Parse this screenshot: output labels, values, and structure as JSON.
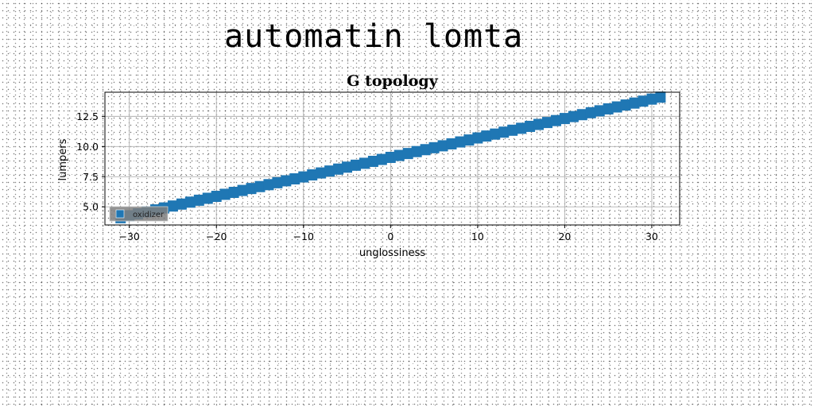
{
  "page": {
    "title": "automatin lomta"
  },
  "chart_data": {
    "type": "scatter",
    "title": "G topology",
    "xlabel": "unglossiness",
    "ylabel": "lumpers",
    "xlim": [
      -32.8,
      33.2
    ],
    "ylim": [
      3.5,
      14.5
    ],
    "xticks": [
      -30,
      -20,
      -10,
      0,
      10,
      20,
      30
    ],
    "xtick_labels": [
      "−30",
      "−20",
      "−10",
      "0",
      "10",
      "20",
      "30"
    ],
    "yticks": [
      5.0,
      7.5,
      10.0,
      12.5
    ],
    "ytick_labels": [
      "5.0",
      "7.5",
      "10.0",
      "12.5"
    ],
    "grid": true,
    "legend_position": "lower-left",
    "marker": "square",
    "color": "#1f77b4",
    "series": [
      {
        "name": "oxidizer",
        "x": [
          -31,
          -30,
          -29,
          -28,
          -27,
          -26,
          -25,
          -24,
          -23,
          -22,
          -21,
          -20,
          -19,
          -18,
          -17,
          -16,
          -15,
          -14,
          -13,
          -12,
          -11,
          -10,
          -9,
          -8,
          -7,
          -6,
          -5,
          -4,
          -3,
          -2,
          -1,
          0,
          1,
          2,
          3,
          4,
          5,
          6,
          7,
          8,
          9,
          10,
          11,
          12,
          13,
          14,
          15,
          16,
          17,
          18,
          19,
          20,
          21,
          22,
          23,
          24,
          25,
          26,
          27,
          28,
          29,
          30,
          31
        ],
        "y": [
          4.1,
          4.26,
          4.42,
          4.59,
          4.75,
          4.91,
          5.07,
          5.23,
          5.39,
          5.55,
          5.71,
          5.87,
          6.04,
          6.2,
          6.36,
          6.52,
          6.68,
          6.84,
          7.0,
          7.16,
          7.32,
          7.48,
          7.65,
          7.81,
          7.97,
          8.13,
          8.29,
          8.45,
          8.61,
          8.77,
          8.93,
          9.1,
          9.26,
          9.42,
          9.58,
          9.74,
          9.9,
          10.06,
          10.22,
          10.38,
          10.54,
          10.71,
          10.87,
          11.03,
          11.19,
          11.35,
          11.51,
          11.67,
          11.83,
          11.99,
          12.15,
          12.32,
          12.48,
          12.64,
          12.8,
          12.96,
          13.12,
          13.28,
          13.44,
          13.6,
          13.76,
          13.93,
          14.09
        ]
      }
    ]
  }
}
